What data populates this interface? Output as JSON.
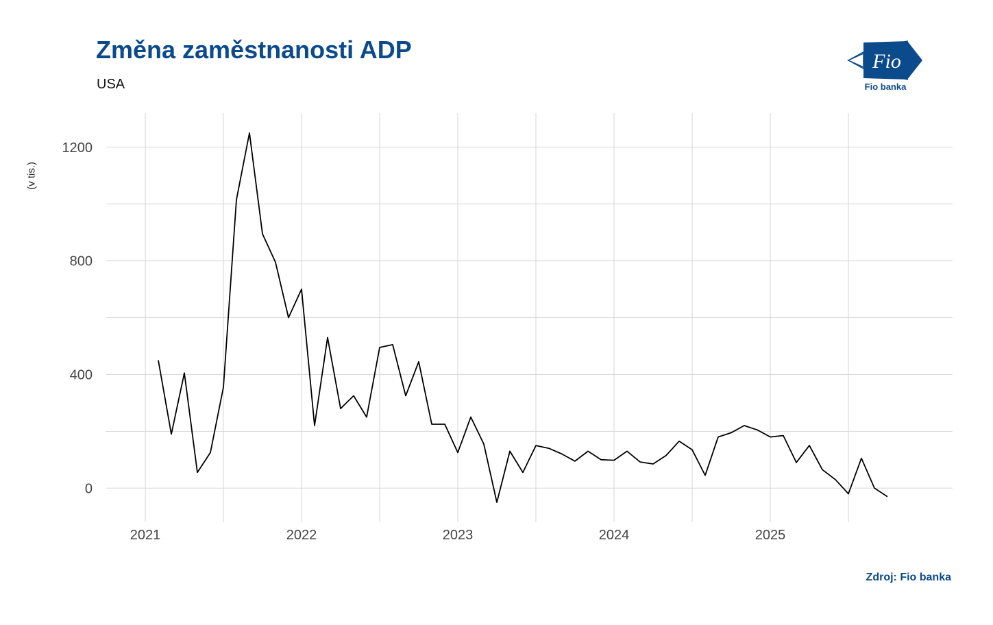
{
  "header": {
    "title": "Změna zaměstnanosti ADP",
    "subtitle": "USA"
  },
  "logo": {
    "mark_text": "Fio",
    "caption": "Fio banka",
    "color": "#0b4a8b"
  },
  "footer": {
    "source": "Zdroj: Fio banka"
  },
  "chart_data": {
    "type": "line",
    "title": "Změna zaměstnanosti ADP",
    "subtitle": "USA",
    "xlabel": "",
    "ylabel": "(v tis.)",
    "ylim": [
      -120,
      1320
    ],
    "xlim": [
      "2020-10-01",
      "2026-03-01"
    ],
    "y_ticks": [
      0,
      400,
      800,
      1200
    ],
    "x_ticks": [
      {
        "date": "2021-01-01",
        "label": "2021"
      },
      {
        "date": "2022-01-01",
        "label": "2022"
      },
      {
        "date": "2023-01-01",
        "label": "2023"
      },
      {
        "date": "2024-01-01",
        "label": "2024"
      },
      {
        "date": "2025-01-01",
        "label": "2025"
      }
    ],
    "grid": true,
    "line_color": "#000000",
    "series": [
      {
        "x": [
          "2021-02",
          "2021-03",
          "2021-04",
          "2021-05",
          "2021-06",
          "2021-07",
          "2021-08",
          "2021-09",
          "2021-10",
          "2021-11",
          "2021-12",
          "2022-01",
          "2022-02",
          "2022-03",
          "2022-04",
          "2022-05",
          "2022-06",
          "2022-07",
          "2022-08",
          "2022-09",
          "2022-10",
          "2022-11",
          "2022-12",
          "2023-01",
          "2023-02",
          "2023-03",
          "2023-04",
          "2023-05",
          "2023-06",
          "2023-07",
          "2023-08",
          "2023-09",
          "2023-10",
          "2023-11",
          "2023-12",
          "2024-01",
          "2024-02",
          "2024-03",
          "2024-04",
          "2024-05",
          "2024-06",
          "2024-07",
          "2024-08",
          "2024-09",
          "2024-10",
          "2024-11",
          "2024-12",
          "2025-01",
          "2025-02",
          "2025-03",
          "2025-04",
          "2025-05",
          "2025-06",
          "2025-07",
          "2025-08",
          "2025-09",
          "2025-10"
        ],
        "values": [
          450,
          190,
          405,
          55,
          125,
          355,
          1015,
          1250,
          895,
          795,
          600,
          700,
          220,
          530,
          280,
          325,
          250,
          495,
          505,
          325,
          445,
          225,
          225,
          125,
          250,
          155,
          -50,
          130,
          55,
          150,
          140,
          120,
          95,
          130,
          100,
          98,
          130,
          92,
          85,
          115,
          165,
          135,
          45,
          180,
          195,
          220,
          205,
          180,
          185,
          90,
          150,
          65,
          30,
          -20,
          105,
          0,
          -30
        ]
      }
    ]
  }
}
